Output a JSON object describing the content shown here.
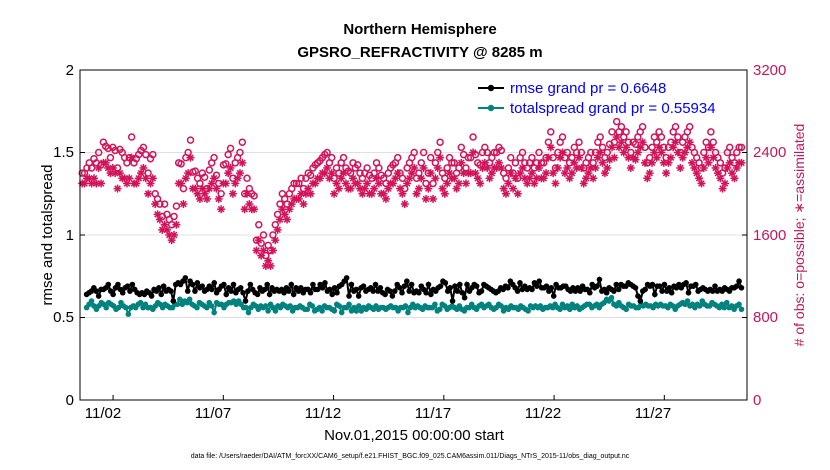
{
  "chart_data": {
    "type": "line",
    "title": "Northern Hemisphere",
    "subtitle": "GPSRO_REFRACTIVITY @ 8285 m",
    "xlabel": "Nov.01,2015 00:00:00 start",
    "ylabel": "rmse and totalspread",
    "ylabel_right": "# of obs: o=possible; ∗=assimilated",
    "x_tick_labels": [
      "11/02",
      "11/07",
      "11/12",
      "11/17",
      "11/22",
      "11/27"
    ],
    "y_tick_labels": [
      "0",
      "0.5",
      "1",
      "1.5",
      "2"
    ],
    "y_right_tick_labels": [
      "0",
      "800",
      "1600",
      "2400",
      "3200"
    ],
    "xlim": [
      0.5,
      30.75
    ],
    "ylim": [
      0,
      2
    ],
    "ylim_right": [
      0,
      3200
    ],
    "colors": {
      "rmse": "#000000",
      "spread": "#00827f",
      "obs": "#d2145a",
      "grid": "#e0e0e0"
    },
    "legend": [
      {
        "name": "rmse grand pr = 0.6648",
        "color": "#000000"
      },
      {
        "name": "totalspread grand pr = 0.55934",
        "color": "#00827f"
      }
    ],
    "footnote": "data file: /Users/raeder/DAI/ATM_forcXX/CAM6_setup/f.e21.FHIST_BGC.f09_025.CAM6assim.011/Diags_NTrS_2015-11/obs_diag_output.nc",
    "rmse_values": [
      0.64,
      0.65,
      0.66,
      0.68,
      0.66,
      0.63,
      0.67,
      0.67,
      0.68,
      0.7,
      0.66,
      0.64,
      0.68,
      0.7,
      0.67,
      0.65,
      0.68,
      0.69,
      0.66,
      0.7,
      0.67,
      0.65,
      0.64,
      0.65,
      0.64,
      0.66,
      0.65,
      0.63,
      0.67,
      0.66,
      0.68,
      0.64,
      0.69,
      0.66,
      0.67,
      0.66,
      0.6,
      0.7,
      0.71,
      0.7,
      0.72,
      0.74,
      0.66,
      0.72,
      0.7,
      0.66,
      0.71,
      0.68,
      0.69,
      0.66,
      0.67,
      0.69,
      0.67,
      0.71,
      0.65,
      0.67,
      0.69,
      0.7,
      0.64,
      0.68,
      0.66,
      0.7,
      0.65,
      0.67,
      0.68,
      0.65,
      0.6,
      0.66,
      0.7,
      0.67,
      0.65,
      0.64,
      0.68,
      0.66,
      0.67,
      0.7,
      0.64,
      0.68,
      0.66,
      0.67,
      0.66,
      0.67,
      0.65,
      0.68,
      0.66,
      0.7,
      0.64,
      0.68,
      0.66,
      0.68,
      0.65,
      0.67,
      0.67,
      0.65,
      0.7,
      0.67,
      0.67,
      0.7,
      0.68,
      0.71,
      0.66,
      0.67,
      0.64,
      0.68,
      0.65,
      0.69,
      0.7,
      0.72,
      0.74,
      0.63,
      0.7,
      0.66,
      0.67,
      0.63,
      0.68,
      0.69,
      0.66,
      0.67,
      0.68,
      0.66,
      0.7,
      0.66,
      0.68,
      0.65,
      0.64,
      0.67,
      0.66,
      0.63,
      0.66,
      0.7,
      0.68,
      0.65,
      0.69,
      0.72,
      0.66,
      0.7,
      0.65,
      0.66,
      0.65,
      0.69,
      0.67,
      0.65,
      0.7,
      0.64,
      0.67,
      0.66,
      0.68,
      0.69,
      0.72,
      0.71,
      0.66,
      0.68,
      0.6,
      0.69,
      0.66,
      0.7,
      0.65,
      0.62,
      0.7,
      0.66,
      0.68,
      0.7,
      0.69,
      0.65,
      0.66,
      0.7,
      0.69,
      0.68,
      0.67,
      0.66,
      0.65,
      0.66,
      0.68,
      0.67,
      0.69,
      0.68,
      0.72,
      0.7,
      0.68,
      0.66,
      0.71,
      0.67,
      0.69,
      0.67,
      0.68,
      0.67,
      0.71,
      0.69,
      0.72,
      0.68,
      0.68,
      0.69,
      0.66,
      0.68,
      0.63,
      0.7,
      0.68,
      0.68,
      0.69,
      0.69,
      0.67,
      0.66,
      0.68,
      0.66,
      0.68,
      0.66,
      0.69,
      0.67,
      0.67,
      0.65,
      0.7,
      0.68,
      0.69,
      0.73,
      0.66,
      0.67,
      0.65,
      0.68,
      0.67,
      0.66,
      0.7,
      0.67,
      0.7,
      0.69,
      0.69,
      0.71,
      0.7,
      0.69,
      0.68,
      0.63,
      0.6,
      0.66,
      0.67,
      0.7,
      0.69,
      0.7,
      0.64,
      0.69,
      0.69,
      0.66,
      0.7,
      0.66,
      0.68,
      0.65,
      0.69,
      0.68,
      0.7,
      0.68,
      0.7,
      0.71,
      0.65,
      0.69,
      0.69,
      0.7,
      0.66,
      0.67,
      0.68,
      0.67,
      0.66,
      0.67,
      0.66,
      0.69,
      0.66,
      0.67,
      0.66,
      0.68,
      0.67,
      0.66,
      0.68,
      0.68,
      0.69,
      0.72,
      0.68
    ],
    "spread_values": [
      0.56,
      0.58,
      0.6,
      0.57,
      0.55,
      0.57,
      0.59,
      0.58,
      0.56,
      0.59,
      0.58,
      0.57,
      0.55,
      0.56,
      0.59,
      0.57,
      0.56,
      0.52,
      0.56,
      0.57,
      0.56,
      0.58,
      0.59,
      0.56,
      0.58,
      0.56,
      0.56,
      0.55,
      0.57,
      0.59,
      0.58,
      0.56,
      0.58,
      0.57,
      0.56,
      0.56,
      0.58,
      0.58,
      0.61,
      0.58,
      0.6,
      0.59,
      0.61,
      0.58,
      0.57,
      0.56,
      0.59,
      0.58,
      0.57,
      0.56,
      0.59,
      0.57,
      0.53,
      0.59,
      0.58,
      0.58,
      0.56,
      0.58,
      0.59,
      0.59,
      0.6,
      0.58,
      0.6,
      0.58,
      0.56,
      0.56,
      0.53,
      0.56,
      0.58,
      0.57,
      0.55,
      0.57,
      0.56,
      0.57,
      0.54,
      0.58,
      0.56,
      0.54,
      0.57,
      0.56,
      0.58,
      0.57,
      0.56,
      0.57,
      0.54,
      0.56,
      0.56,
      0.57,
      0.56,
      0.55,
      0.55,
      0.58,
      0.57,
      0.54,
      0.55,
      0.56,
      0.54,
      0.57,
      0.56,
      0.56,
      0.55,
      0.54,
      0.58,
      0.57,
      0.53,
      0.56,
      0.56,
      0.58,
      0.54,
      0.56,
      0.54,
      0.57,
      0.54,
      0.56,
      0.55,
      0.57,
      0.56,
      0.55,
      0.57,
      0.55,
      0.56,
      0.56,
      0.55,
      0.56,
      0.57,
      0.56,
      0.56,
      0.54,
      0.56,
      0.56,
      0.57,
      0.53,
      0.56,
      0.58,
      0.56,
      0.57,
      0.56,
      0.55,
      0.57,
      0.56,
      0.56,
      0.56,
      0.58,
      0.54,
      0.55,
      0.58,
      0.57,
      0.55,
      0.56,
      0.57,
      0.56,
      0.55,
      0.57,
      0.55,
      0.54,
      0.56,
      0.56,
      0.58,
      0.56,
      0.55,
      0.57,
      0.58,
      0.56,
      0.57,
      0.58,
      0.56,
      0.55,
      0.56,
      0.58,
      0.57,
      0.54,
      0.56,
      0.55,
      0.57,
      0.56,
      0.56,
      0.55,
      0.57,
      0.56,
      0.55,
      0.54,
      0.57,
      0.56,
      0.57,
      0.56,
      0.57,
      0.55,
      0.56,
      0.56,
      0.57,
      0.56,
      0.58,
      0.56,
      0.55,
      0.58,
      0.56,
      0.57,
      0.55,
      0.58,
      0.56,
      0.57,
      0.55,
      0.56,
      0.57,
      0.58,
      0.58,
      0.56,
      0.57,
      0.58,
      0.56,
      0.58,
      0.59,
      0.61,
      0.6,
      0.62,
      0.58,
      0.57,
      0.59,
      0.57,
      0.56,
      0.55,
      0.58,
      0.57,
      0.57,
      0.56,
      0.56,
      0.58,
      0.57,
      0.58,
      0.57,
      0.57,
      0.56,
      0.58,
      0.57,
      0.58,
      0.57,
      0.57,
      0.56,
      0.58,
      0.57,
      0.55,
      0.57,
      0.58,
      0.59,
      0.58,
      0.6,
      0.57,
      0.58,
      0.56,
      0.58,
      0.57,
      0.6,
      0.58,
      0.57,
      0.57,
      0.59,
      0.58,
      0.57,
      0.56,
      0.58,
      0.56,
      0.59,
      0.56,
      0.57,
      0.55,
      0.57,
      0.58,
      0.55
    ],
    "obs_possible": [
      2200,
      2200,
      2250,
      2300,
      2250,
      2340,
      2300,
      2400,
      2280,
      2500,
      2460,
      2440,
      2350,
      2450,
      2420,
      2250,
      2430,
      2400,
      2350,
      2300,
      2350,
      2550,
      2300,
      2340,
      2380,
      2420,
      2450,
      2380,
      2200,
      2340,
      2380,
      2000,
      1950,
      1900,
      1780,
      1900,
      1800,
      1750,
      1700,
      1780,
      1880,
      2300,
      2290,
      2050,
      2350,
      2400,
      2520,
      2210,
      2220,
      2150,
      2100,
      2200,
      2160,
      2050,
      2230,
      2300,
      2350,
      2180,
      2100,
      2000,
      2280,
      2290,
      2380,
      2440,
      2150,
      2300,
      2350,
      2400,
      2500,
      2000,
      2150,
      2050,
      2000,
      1980,
      1550,
      1700,
      1520,
      1600,
      1400,
      1500,
      1450,
      1600,
      1700,
      1800,
      1900,
      2000,
      1950,
      1900,
      2000,
      2050,
      2100,
      2100,
      2100,
      2150,
      2050,
      2150,
      2200,
      2180,
      2250,
      2280,
      2300,
      2320,
      2350,
      2380,
      2400,
      2300,
      2350,
      2150,
      2250,
      2200,
      2300,
      2350,
      2250,
      2220,
      2200,
      2300,
      2250,
      2280,
      2200,
      2150,
      2200,
      2250,
      2180,
      2150,
      2200,
      2300,
      2250,
      2180,
      2150,
      2100,
      2200,
      2250,
      2280,
      2300,
      2350,
      2200,
      2150,
      2050,
      2250,
      2300,
      2350,
      2400,
      2150,
      2200,
      2300,
      2400,
      2100,
      2200,
      2350,
      2100,
      2300,
      2400,
      2500,
      2200,
      2150,
      2250,
      2350,
      2300,
      2300,
      2200,
      2250,
      2450,
      2380,
      2250,
      2350,
      2350,
      2550,
      2380,
      2300,
      2280,
      2400,
      2450,
      2400,
      2300,
      2350,
      2400,
      2400,
      2450,
      2420,
      2200,
      2150,
      2250,
      2350,
      2200,
      2300,
      2150,
      2350,
      2400,
      2300,
      2250,
      2300,
      2350,
      2250,
      2300,
      2400,
      2300,
      2300,
      2350,
      2500,
      2600,
      2350,
      2250,
      2400,
      2500,
      2550,
      2350,
      2400,
      2300,
      2350,
      2450,
      2400,
      2500,
      2400,
      2250,
      2300,
      2350,
      2400,
      2300,
      2400,
      2500,
      2550,
      2450,
      2350,
      2400,
      2480,
      2600,
      2500,
      2700,
      2600,
      2650,
      2550,
      2600,
      2500,
      2400,
      2500,
      2480,
      2550,
      2600,
      2650,
      2450,
      2300,
      2350,
      2450,
      2550,
      2500,
      2600,
      2550,
      2450,
      2350,
      2450,
      2500,
      2600,
      2650,
      2550,
      2400,
      2500,
      2550,
      2600,
      2650,
      2450,
      2400,
      2350,
      2300,
      2250,
      2400,
      2500,
      2450,
      2600,
      2500,
      2400,
      2350,
      2300,
      2200,
      2250,
      2400,
      2450,
      2350,
      2300,
      2400,
      2450,
      2450
    ],
    "obs_assimilated": [
      2100,
      2100,
      2150,
      2150,
      2100,
      2150,
      2100,
      2250,
      2100,
      2300,
      2300,
      2250,
      2200,
      2250,
      2200,
      2050,
      2200,
      2150,
      2150,
      2100,
      2150,
      2350,
      2100,
      2100,
      2150,
      2200,
      2250,
      2150,
      2000,
      2100,
      2150,
      1900,
      1800,
      1750,
      1650,
      1700,
      1650,
      1600,
      1550,
      1600,
      1700,
      2100,
      2100,
      1900,
      2150,
      2200,
      2350,
      2050,
      2050,
      2000,
      1950,
      2050,
      2000,
      1950,
      2050,
      2100,
      2150,
      2050,
      1950,
      1850,
      2100,
      2100,
      2200,
      2250,
      2000,
      2100,
      2150,
      2200,
      2300,
      1850,
      2000,
      1900,
      1850,
      1850,
      1450,
      1550,
      1400,
      1450,
      1300,
      1350,
      1300,
      1450,
      1550,
      1650,
      1750,
      1850,
      1800,
      1750,
      1850,
      1900,
      1950,
      1950,
      1950,
      2000,
      1900,
      2000,
      2050,
      2000,
      2100,
      2100,
      2150,
      2150,
      2200,
      2200,
      2250,
      2150,
      2200,
      2000,
      2100,
      2050,
      2150,
      2200,
      2100,
      2050,
      2050,
      2150,
      2100,
      2100,
      2050,
      2000,
      2050,
      2100,
      2000,
      2000,
      2050,
      2150,
      2100,
      2000,
      2000,
      1950,
      2050,
      2100,
      2100,
      2150,
      2200,
      2050,
      2000,
      1900,
      2100,
      2150,
      2200,
      2250,
      2000,
      2050,
      2150,
      2250,
      1950,
      2050,
      2200,
      1950,
      2150,
      2250,
      2350,
      2050,
      2000,
      2100,
      2200,
      2150,
      2150,
      2050,
      2100,
      2300,
      2200,
      2100,
      2200,
      2200,
      2400,
      2200,
      2150,
      2100,
      2250,
      2300,
      2250,
      2150,
      2200,
      2250,
      2250,
      2300,
      2250,
      2050,
      2000,
      2100,
      2200,
      2050,
      2150,
      2000,
      2200,
      2250,
      2150,
      2100,
      2150,
      2200,
      2100,
      2150,
      2250,
      2150,
      2150,
      2200,
      2350,
      2450,
      2200,
      2100,
      2250,
      2350,
      2400,
      2200,
      2250,
      2150,
      2200,
      2300,
      2250,
      2350,
      2250,
      2100,
      2150,
      2200,
      2250,
      2150,
      2250,
      2350,
      2400,
      2300,
      2200,
      2250,
      2330,
      2450,
      2350,
      2550,
      2450,
      2500,
      2400,
      2450,
      2350,
      2250,
      2350,
      2330,
      2400,
      2450,
      2500,
      2300,
      2150,
      2200,
      2300,
      2400,
      2350,
      2450,
      2400,
      2300,
      2200,
      2300,
      2350,
      2450,
      2500,
      2400,
      2250,
      2350,
      2400,
      2450,
      2500,
      2300,
      2250,
      2200,
      2150,
      2100,
      2250,
      2350,
      2300,
      2450,
      2350,
      2250,
      2200,
      2150,
      2050,
      2100,
      2250,
      2300,
      2200,
      2150,
      2250,
      2300,
      2300
    ]
  }
}
